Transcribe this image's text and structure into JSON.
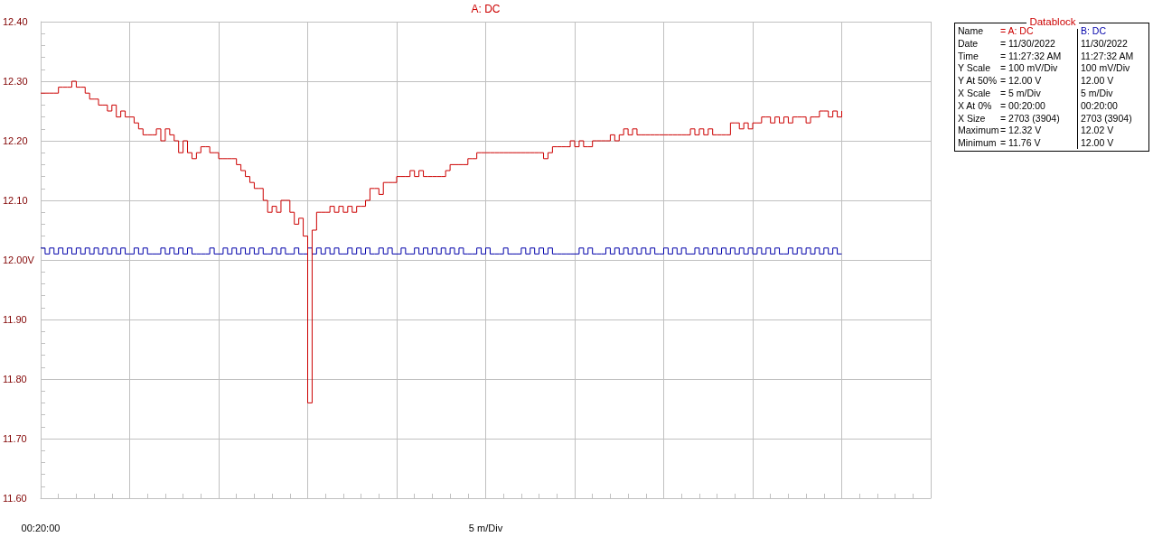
{
  "chart_data": [
    {
      "type": "step",
      "title": "A: DC",
      "xlabel": "5 m/Div",
      "annotations": [
        "00:20:00"
      ],
      "tick_labels": "y",
      "categories": [
        null,
        null,
        null,
        null,
        null,
        null,
        null,
        null,
        null,
        null,
        null,
        null,
        null,
        null,
        null,
        null,
        null,
        null,
        null,
        null,
        null,
        null,
        null,
        null,
        null,
        null,
        null,
        null,
        null,
        null,
        null,
        null,
        null,
        null,
        null,
        null,
        null,
        null,
        null,
        null,
        null,
        null,
        null,
        null,
        null,
        null,
        null,
        null,
        null,
        null,
        null,
        null,
        null,
        null,
        null,
        null,
        null,
        null,
        null,
        null,
        null,
        null,
        null,
        null,
        null,
        null,
        null,
        null,
        null,
        null,
        null,
        null,
        null,
        null,
        null,
        null,
        null,
        null,
        null,
        null,
        null,
        null,
        null,
        null,
        null,
        null,
        null,
        null,
        null,
        null,
        null,
        null,
        null,
        null,
        null,
        null,
        null,
        null,
        null,
        null,
        null,
        null,
        null,
        null,
        null,
        null,
        null,
        null,
        null,
        null,
        null,
        null,
        null,
        null,
        null,
        null,
        null,
        null,
        null,
        null,
        null,
        null,
        null,
        null,
        null,
        null,
        null,
        null,
        null,
        null,
        null,
        null,
        null,
        null,
        null,
        null,
        null,
        null,
        null,
        null,
        null,
        null,
        null,
        null,
        null,
        null,
        null,
        null,
        null,
        null,
        null,
        null,
        null,
        null,
        null,
        null,
        null,
        null,
        null,
        null,
        null,
        null,
        null,
        null,
        null,
        null,
        null,
        null,
        null,
        null,
        null,
        null,
        null,
        null,
        null,
        null,
        null,
        null,
        null,
        null,
        null
      ],
      "ylim": [
        11.6,
        12.4
      ],
      "yticks": [
        {
          "value": 11.6,
          "label": "11.60"
        },
        {
          "value": 11.7,
          "label": "11.70"
        },
        {
          "value": 11.8,
          "label": "11.80"
        },
        {
          "value": 11.9,
          "label": "11.90"
        },
        {
          "value": 12.0,
          "label": "12.00V"
        },
        {
          "value": 12.1,
          "label": "12.10"
        },
        {
          "value": 12.2,
          "label": "12.20"
        },
        {
          "value": 12.3,
          "label": "12.30"
        },
        {
          "value": 12.4,
          "label": "12.40"
        }
      ],
      "grid": true,
      "series": [
        {
          "color": "#cc0000",
          "values": [
            12.28,
            12.28,
            12.28,
            12.28,
            12.29,
            12.29,
            12.29,
            12.3,
            12.29,
            12.29,
            12.28,
            12.27,
            12.27,
            12.26,
            12.26,
            12.25,
            12.26,
            12.24,
            12.25,
            12.24,
            12.24,
            12.23,
            12.22,
            12.21,
            12.21,
            12.21,
            12.22,
            12.2,
            12.22,
            12.21,
            12.2,
            12.18,
            12.2,
            12.18,
            12.17,
            12.18,
            12.19,
            12.19,
            12.18,
            12.18,
            12.17,
            12.17,
            12.17,
            12.17,
            12.16,
            12.15,
            12.14,
            12.13,
            12.12,
            12.12,
            12.1,
            12.08,
            12.09,
            12.08,
            12.1,
            12.1,
            12.08,
            12.06,
            12.07,
            12.04,
            11.76,
            12.05,
            12.08,
            12.08,
            12.08,
            12.09,
            12.08,
            12.09,
            12.08,
            12.09,
            12.08,
            12.09,
            12.09,
            12.1,
            12.12,
            12.12,
            12.11,
            12.13,
            12.13,
            12.13,
            12.14,
            12.14,
            12.14,
            12.15,
            12.14,
            12.15,
            12.14,
            12.14,
            12.14,
            12.14,
            12.14,
            12.15,
            12.16,
            12.16,
            12.16,
            12.16,
            12.17,
            12.17,
            12.18,
            12.18,
            12.18,
            12.18,
            12.18,
            12.18,
            12.18,
            12.18,
            12.18,
            12.18,
            12.18,
            12.18,
            12.18,
            12.18,
            12.18,
            12.17,
            12.18,
            12.19,
            12.19,
            12.19,
            12.19,
            12.2,
            12.19,
            12.2,
            12.19,
            12.19,
            12.2,
            12.2,
            12.2,
            12.2,
            12.21,
            12.2,
            12.21,
            12.22,
            12.21,
            12.22,
            12.21,
            12.21,
            12.21,
            12.21,
            12.21,
            12.21,
            12.21,
            12.21,
            12.21,
            12.21,
            12.21,
            12.21,
            12.22,
            12.21,
            12.22,
            12.21,
            12.22,
            12.21,
            12.21,
            12.21,
            12.21,
            12.23,
            12.23,
            12.22,
            12.23,
            12.22,
            12.23,
            12.23,
            12.24,
            12.24,
            12.23,
            12.24,
            12.23,
            12.24,
            12.23,
            12.24,
            12.24,
            12.24,
            12.23,
            12.24,
            12.24,
            12.25,
            12.25,
            12.24,
            12.25,
            12.24,
            12.25
          ]
        },
        {
          "color": "#0000aa",
          "values": [
            12.02,
            12.01,
            12.02,
            12.01,
            12.02,
            12.01,
            12.02,
            12.01,
            12.02,
            12.01,
            12.02,
            12.01,
            12.02,
            12.01,
            12.02,
            12.01,
            12.02,
            12.01,
            12.02,
            12.01,
            12.01,
            12.02,
            12.01,
            12.02,
            12.01,
            12.01,
            12.01,
            12.02,
            12.01,
            12.02,
            12.01,
            12.02,
            12.01,
            12.02,
            12.01,
            12.01,
            12.01,
            12.01,
            12.02,
            12.01,
            12.01,
            12.02,
            12.01,
            12.02,
            12.01,
            12.02,
            12.01,
            12.02,
            12.01,
            12.02,
            12.01,
            12.01,
            12.02,
            12.01,
            12.02,
            12.01,
            12.01,
            12.02,
            12.01,
            12.01,
            12.02,
            12.01,
            12.02,
            12.01,
            12.02,
            12.01,
            12.02,
            12.01,
            12.01,
            12.02,
            12.01,
            12.02,
            12.01,
            12.02,
            12.01,
            12.01,
            12.02,
            12.01,
            12.02,
            12.01,
            12.01,
            12.02,
            12.01,
            12.01,
            12.02,
            12.01,
            12.02,
            12.01,
            12.02,
            12.01,
            12.02,
            12.01,
            12.02,
            12.01,
            12.02,
            12.01,
            12.01,
            12.01,
            12.02,
            12.01,
            12.02,
            12.01,
            12.01,
            12.01,
            12.02,
            12.01,
            12.01,
            12.01,
            12.02,
            12.01,
            12.02,
            12.01,
            12.02,
            12.01,
            12.02,
            12.01,
            12.01,
            12.01,
            12.01,
            12.01,
            12.01,
            12.02,
            12.01,
            12.02,
            12.01,
            12.01,
            12.01,
            12.02,
            12.01,
            12.02,
            12.01,
            12.02,
            12.01,
            12.02,
            12.01,
            12.02,
            12.01,
            12.02,
            12.01,
            12.01,
            12.02,
            12.01,
            12.02,
            12.01,
            12.02,
            12.01,
            12.01,
            12.02,
            12.01,
            12.02,
            12.01,
            12.02,
            12.01,
            12.02,
            12.01,
            12.02,
            12.01,
            12.02,
            12.01,
            12.02,
            12.01,
            12.02,
            12.01,
            12.02,
            12.01,
            12.02,
            12.01,
            12.01,
            12.02,
            12.01,
            12.02,
            12.01,
            12.02,
            12.01,
            12.02,
            12.01,
            12.02,
            12.01,
            12.02,
            12.01,
            12.01
          ]
        }
      ]
    },
    {
      "type": "other",
      "title": "Datablock",
      "annotations": [
        "Name",
        "= A: DC",
        "B: DC",
        "Date",
        "= 11/30/2022",
        "11/30/2022",
        "Time",
        "= 11:27:32 AM",
        "11:27:32 AM",
        "Y Scale",
        "= 100 mV/Div",
        "100 mV/Div",
        "Y At 50%",
        "= 12.00 V",
        "12.00 V",
        "X Scale",
        "= 5 m/Div",
        "5 m/Div",
        "X At 0%",
        "= 00:20:00",
        "00:20:00",
        "X Size",
        "= 2703 (3904)",
        "2703 (3904)",
        "Maximum",
        "= 12.32 V",
        "12.02 V",
        "Minimum",
        "= 11.76 V",
        "12.00 V"
      ]
    }
  ]
}
